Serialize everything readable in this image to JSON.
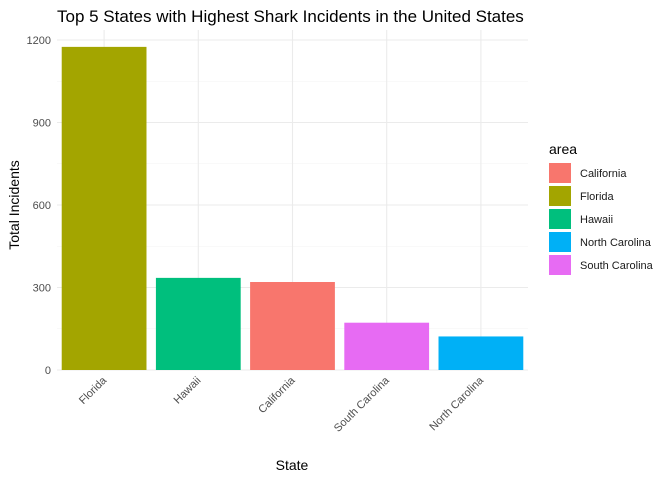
{
  "chart_data": {
    "type": "bar",
    "title": "Top 5 States with Highest Shark Incidents in the United States",
    "xlabel": "State",
    "ylabel": "Total Incidents",
    "categories": [
      "Florida",
      "Hawaii",
      "California",
      "South Carolina",
      "North Carolina"
    ],
    "values": [
      1175,
      335,
      320,
      172,
      122
    ],
    "ylim": [
      0,
      1200
    ],
    "yticks": [
      "0",
      "300",
      "600",
      "900",
      "1200"
    ],
    "grid": true,
    "legend": {
      "title": "area",
      "position": "right",
      "items": [
        {
          "label": "California",
          "color": "#F8766D"
        },
        {
          "label": "Florida",
          "color": "#A3A500"
        },
        {
          "label": "Hawaii",
          "color": "#00BF7D"
        },
        {
          "label": "North Carolina",
          "color": "#00B0F6"
        },
        {
          "label": "South Carolina",
          "color": "#E76BF3"
        }
      ]
    },
    "bar_colors": [
      "#A3A500",
      "#00BF7D",
      "#F8766D",
      "#E76BF3",
      "#00B0F6"
    ]
  }
}
